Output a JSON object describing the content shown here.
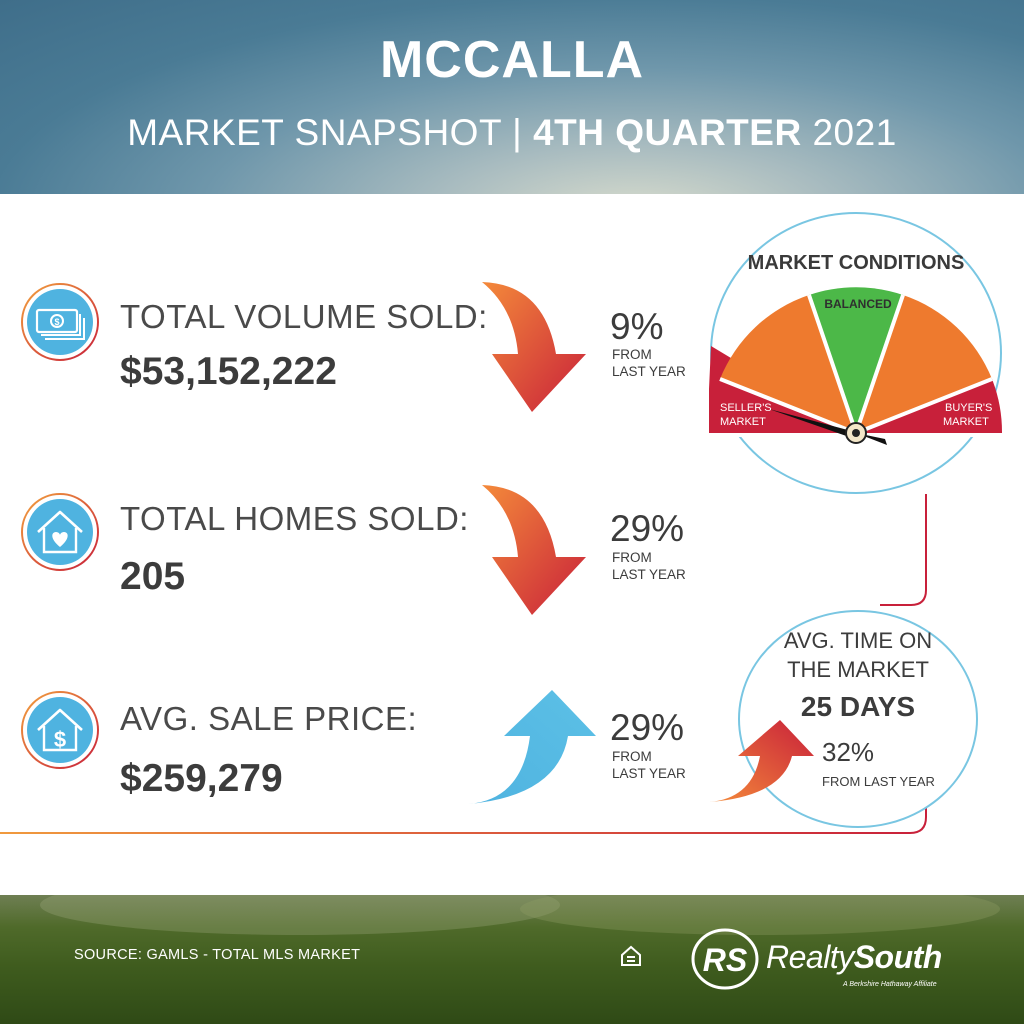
{
  "header": {
    "title": "MCCALLA",
    "subtitle_prefix": "MARKET SNAPSHOT | ",
    "subtitle_bold": "4TH QUARTER",
    "subtitle_suffix": " 2021"
  },
  "stats": [
    {
      "label": "TOTAL VOLUME SOLD:",
      "value": "$53,152,222",
      "change": "9%",
      "change_note_1": "FROM",
      "change_note_2": "LAST YEAR",
      "direction": "down",
      "icon": "cash-stack-icon"
    },
    {
      "label": "TOTAL HOMES SOLD:",
      "value": "205",
      "change": "29%",
      "change_note_1": "FROM",
      "change_note_2": "LAST YEAR",
      "direction": "down",
      "icon": "house-heart-icon"
    },
    {
      "label": "AVG. SALE PRICE:",
      "value": "$259,279",
      "change": "29%",
      "change_note_1": "FROM",
      "change_note_2": "LAST YEAR",
      "direction": "up",
      "icon": "house-dollar-icon"
    }
  ],
  "market_conditions": {
    "title": "MARKET CONDITIONS",
    "balanced": "BALANCED",
    "seller_1": "SELLER'S",
    "seller_2": "MARKET",
    "buyer_1": "BUYER'S",
    "buyer_2": "MARKET",
    "indicator": "seller's market"
  },
  "time_on_market": {
    "line1": "AVG. TIME ON",
    "line2": "THE MARKET",
    "value": "25 DAYS",
    "change": "32%",
    "change_note": "FROM LAST YEAR",
    "direction": "up"
  },
  "footer": {
    "source": "SOURCE: GAMLS - TOTAL MLS MARKET",
    "logo_initials": "RS",
    "brand_regular": "Realty",
    "brand_bold": "South",
    "affiliate": "A Berkshire Hathaway Affiliate"
  },
  "colors": {
    "seller_red": "#c8203a",
    "orange": "#ee7a2e",
    "balanced_green": "#4cb848",
    "accent_blue": "#4fb3e0",
    "divider": "#e0533a"
  }
}
